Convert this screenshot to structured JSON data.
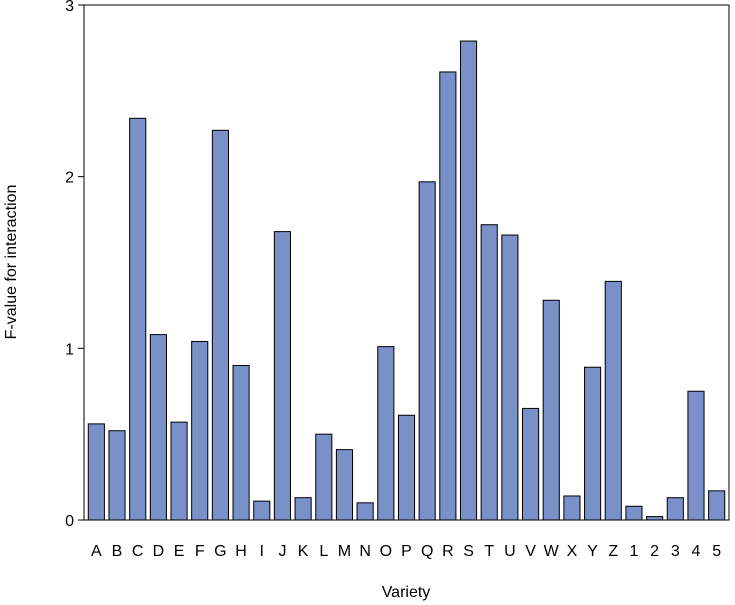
{
  "chart_data": {
    "type": "bar",
    "title": "",
    "xlabel": "Variety",
    "ylabel": "F-value for interaction",
    "ylim": [
      0,
      3
    ],
    "yticks": [
      0,
      1,
      2,
      3
    ],
    "grid": false,
    "legend": "none",
    "bar_color": "#7a90c8",
    "categories": [
      "A",
      "B",
      "C",
      "D",
      "E",
      "F",
      "G",
      "H",
      "I",
      "J",
      "K",
      "L",
      "M",
      "N",
      "O",
      "P",
      "Q",
      "R",
      "S",
      "T",
      "U",
      "V",
      "W",
      "X",
      "Y",
      "Z",
      "1",
      "2",
      "3",
      "4",
      "5"
    ],
    "values": [
      0.56,
      0.52,
      2.34,
      1.08,
      0.57,
      1.04,
      2.27,
      0.9,
      0.11,
      1.68,
      0.13,
      0.5,
      0.41,
      0.1,
      1.01,
      0.61,
      1.97,
      2.61,
      2.79,
      1.72,
      1.66,
      0.65,
      1.28,
      0.14,
      0.89,
      1.39,
      0.08,
      0.02,
      0.13,
      0.75,
      0.17
    ]
  }
}
